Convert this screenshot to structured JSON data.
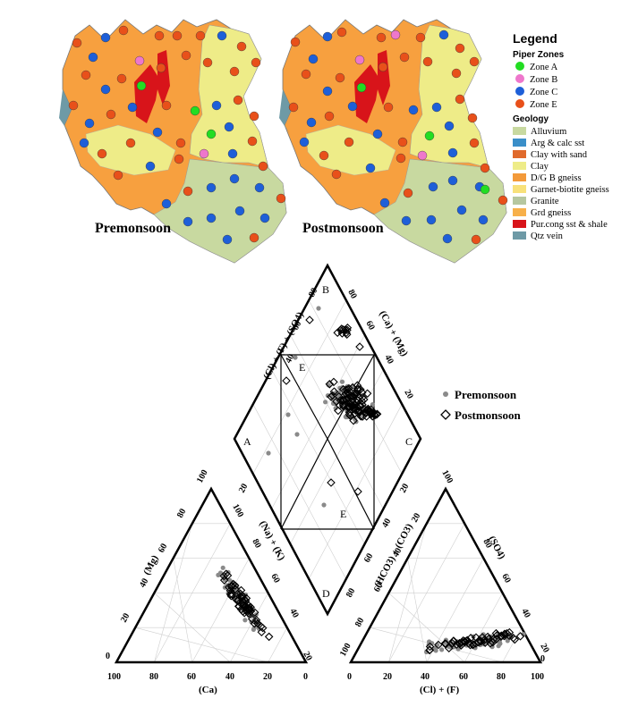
{
  "maps": {
    "left_title": "Premonsoon",
    "right_title": "Postmonsoon"
  },
  "legend": {
    "title": "Legend",
    "piper_heading": "Piper Zones",
    "zones": [
      {
        "label": "Zone A",
        "color": "#22dd22"
      },
      {
        "label": "Zone B",
        "color": "#ee77cc"
      },
      {
        "label": "Zone C",
        "color": "#1e5fd8"
      },
      {
        "label": "Zone E",
        "color": "#e8501a"
      }
    ],
    "geology_heading": "Geology",
    "geology": [
      {
        "label": "Alluvium",
        "color": "#c8d9a0"
      },
      {
        "label": "Arg & calc sst",
        "color": "#3a8fc9"
      },
      {
        "label": "Clay with sand",
        "color": "#e06a2c"
      },
      {
        "label": "Clay",
        "color": "#eeec88"
      },
      {
        "label": "D/G B gneiss",
        "color": "#f39a3a"
      },
      {
        "label": "Garnet-biotite gneiss",
        "color": "#f8e17a"
      },
      {
        "label": "Granite",
        "color": "#b6c7a0"
      },
      {
        "label": "Grd gneiss",
        "color": "#f7b04a"
      },
      {
        "label": "Pur.cong sst & shale",
        "color": "#d8141a"
      },
      {
        "label": "Qtz vein",
        "color": "#6e9aa6"
      }
    ]
  },
  "piper": {
    "zone_labels": {
      "A": "A",
      "B": "B",
      "C": "C",
      "D": "D",
      "E_top": "E",
      "E_low": "E"
    },
    "diamond_left_axis": "(Cl) + (F) + (SO4)",
    "diamond_right_axis": "(Ca) + (Mg)",
    "cation_left_axis": "(Mg)",
    "cation_right_axis": "(Na) + (K)",
    "cation_bottom_axis": "(Ca)",
    "anion_left_axis": "(HCO3) + (CO3)",
    "anion_right_axis": "(SO4)",
    "anion_bottom_axis": "(Cl) + (F)",
    "cation_bottom_ticks": [
      "100",
      "80",
      "60",
      "40",
      "20",
      "0"
    ],
    "cation_left_ticks": [
      "0",
      "20",
      "40",
      "60",
      "80",
      "100"
    ],
    "cation_right_ticks": [
      "100",
      "80",
      "60",
      "40",
      "20"
    ],
    "anion_bottom_ticks": [
      "0",
      "20",
      "40",
      "60",
      "80",
      "100"
    ],
    "anion_left_ticks": [
      "100",
      "80",
      "60",
      "40",
      "20"
    ],
    "anion_right_ticks": [
      "100",
      "80",
      "60",
      "40",
      "20",
      "0"
    ],
    "diamond_left_ticks": [
      "20",
      "40",
      "60",
      "80"
    ],
    "diamond_right_ticks": [
      "80",
      "60",
      "40",
      "20"
    ],
    "diamond_lowright_ticks": [
      "20",
      "40",
      "60",
      "80"
    ],
    "legend": [
      {
        "label": "Premonsoon",
        "marker": "filled-circle",
        "color": "#8a8a8a"
      },
      {
        "label": "Postmonsoon",
        "marker": "open-diamond",
        "color": "#000000"
      }
    ]
  },
  "colors": {
    "water_pre": "#8a8a8a",
    "water_post": "#000000"
  }
}
